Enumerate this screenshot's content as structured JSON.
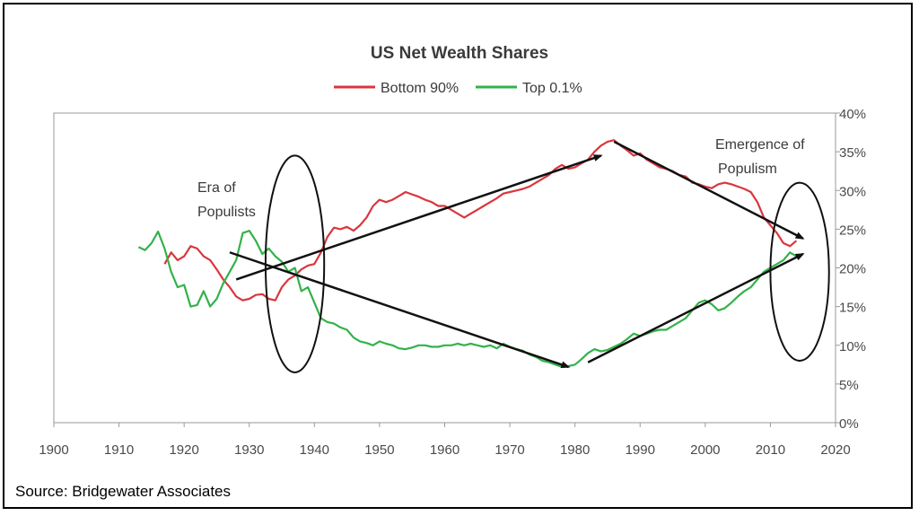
{
  "source_text": "Source:  Bridgewater Associates",
  "chart_data": {
    "type": "line",
    "title": "US Net Wealth Shares",
    "xlabel": "",
    "ylabel": "",
    "xlim": [
      1900,
      2020
    ],
    "ylim": [
      0,
      40
    ],
    "y_axis_side": "right",
    "y_format": "percent",
    "x_ticks": [
      1900,
      1910,
      1920,
      1930,
      1940,
      1950,
      1960,
      1970,
      1980,
      1990,
      2000,
      2010,
      2020
    ],
    "y_ticks": [
      0,
      5,
      10,
      15,
      20,
      25,
      30,
      35,
      40
    ],
    "legend_position": "top-center",
    "grid": false,
    "series": [
      {
        "name": "Bottom 90%",
        "color": "#d9363e",
        "points": [
          [
            1917,
            20.5
          ],
          [
            1918,
            22.0
          ],
          [
            1919,
            21.0
          ],
          [
            1920,
            21.5
          ],
          [
            1921,
            22.8
          ],
          [
            1922,
            22.5
          ],
          [
            1923,
            21.5
          ],
          [
            1924,
            21.0
          ],
          [
            1925,
            19.8
          ],
          [
            1926,
            18.5
          ],
          [
            1927,
            17.5
          ],
          [
            1928,
            16.3
          ],
          [
            1929,
            15.8
          ],
          [
            1930,
            16.0
          ],
          [
            1931,
            16.5
          ],
          [
            1932,
            16.6
          ],
          [
            1933,
            16.0
          ],
          [
            1934,
            15.8
          ],
          [
            1935,
            17.5
          ],
          [
            1936,
            18.5
          ],
          [
            1937,
            19.0
          ],
          [
            1938,
            19.8
          ],
          [
            1939,
            20.3
          ],
          [
            1940,
            20.5
          ],
          [
            1941,
            22.0
          ],
          [
            1942,
            24.0
          ],
          [
            1943,
            25.2
          ],
          [
            1944,
            25.0
          ],
          [
            1945,
            25.3
          ],
          [
            1946,
            24.8
          ],
          [
            1947,
            25.5
          ],
          [
            1948,
            26.5
          ],
          [
            1949,
            28.0
          ],
          [
            1950,
            28.8
          ],
          [
            1951,
            28.5
          ],
          [
            1952,
            28.8
          ],
          [
            1953,
            29.3
          ],
          [
            1954,
            29.8
          ],
          [
            1955,
            29.5
          ],
          [
            1956,
            29.2
          ],
          [
            1957,
            28.8
          ],
          [
            1958,
            28.5
          ],
          [
            1959,
            28.0
          ],
          [
            1960,
            28.0
          ],
          [
            1961,
            27.5
          ],
          [
            1962,
            27.0
          ],
          [
            1963,
            26.5
          ],
          [
            1964,
            27.0
          ],
          [
            1965,
            27.5
          ],
          [
            1966,
            28.0
          ],
          [
            1967,
            28.5
          ],
          [
            1968,
            29.0
          ],
          [
            1969,
            29.6
          ],
          [
            1970,
            29.8
          ],
          [
            1971,
            30.0
          ],
          [
            1972,
            30.2
          ],
          [
            1973,
            30.5
          ],
          [
            1974,
            31.0
          ],
          [
            1975,
            31.5
          ],
          [
            1976,
            32.0
          ],
          [
            1977,
            32.8
          ],
          [
            1978,
            33.3
          ],
          [
            1979,
            32.8
          ],
          [
            1980,
            33.0
          ],
          [
            1981,
            33.5
          ],
          [
            1982,
            34.0
          ],
          [
            1983,
            35.0
          ],
          [
            1984,
            35.8
          ],
          [
            1985,
            36.3
          ],
          [
            1986,
            36.5
          ],
          [
            1987,
            35.8
          ],
          [
            1988,
            35.2
          ],
          [
            1989,
            34.5
          ],
          [
            1990,
            34.8
          ],
          [
            1991,
            34.0
          ],
          [
            1992,
            33.5
          ],
          [
            1993,
            33.0
          ],
          [
            1994,
            32.8
          ],
          [
            1995,
            32.5
          ],
          [
            1996,
            32.0
          ],
          [
            1997,
            31.8
          ],
          [
            1998,
            31.0
          ],
          [
            1999,
            30.8
          ],
          [
            2000,
            30.5
          ],
          [
            2001,
            30.3
          ],
          [
            2002,
            30.8
          ],
          [
            2003,
            31.0
          ],
          [
            2004,
            30.8
          ],
          [
            2005,
            30.5
          ],
          [
            2006,
            30.2
          ],
          [
            2007,
            29.8
          ],
          [
            2008,
            28.5
          ],
          [
            2009,
            26.5
          ],
          [
            2010,
            25.5
          ],
          [
            2011,
            24.5
          ],
          [
            2012,
            23.2
          ],
          [
            2013,
            22.8
          ],
          [
            2014,
            23.5
          ]
        ]
      },
      {
        "name": "Top 0.1%",
        "color": "#33b24a",
        "points": [
          [
            1913,
            22.7
          ],
          [
            1914,
            22.3
          ],
          [
            1915,
            23.2
          ],
          [
            1916,
            24.7
          ],
          [
            1917,
            22.5
          ],
          [
            1918,
            19.5
          ],
          [
            1919,
            17.5
          ],
          [
            1920,
            17.8
          ],
          [
            1921,
            15.0
          ],
          [
            1922,
            15.2
          ],
          [
            1923,
            17.0
          ],
          [
            1924,
            15.0
          ],
          [
            1925,
            16.0
          ],
          [
            1926,
            18.0
          ],
          [
            1927,
            19.5
          ],
          [
            1928,
            21.0
          ],
          [
            1929,
            24.5
          ],
          [
            1930,
            24.8
          ],
          [
            1931,
            23.5
          ],
          [
            1932,
            21.8
          ],
          [
            1933,
            22.5
          ],
          [
            1934,
            21.5
          ],
          [
            1935,
            20.8
          ],
          [
            1936,
            19.5
          ],
          [
            1937,
            20.0
          ],
          [
            1938,
            17.0
          ],
          [
            1939,
            17.5
          ],
          [
            1940,
            15.5
          ],
          [
            1941,
            13.5
          ],
          [
            1942,
            13.0
          ],
          [
            1943,
            12.8
          ],
          [
            1944,
            12.3
          ],
          [
            1945,
            12.0
          ],
          [
            1946,
            11.0
          ],
          [
            1947,
            10.5
          ],
          [
            1948,
            10.3
          ],
          [
            1949,
            10.0
          ],
          [
            1950,
            10.5
          ],
          [
            1951,
            10.2
          ],
          [
            1952,
            10.0
          ],
          [
            1953,
            9.6
          ],
          [
            1954,
            9.5
          ],
          [
            1955,
            9.7
          ],
          [
            1956,
            10.0
          ],
          [
            1957,
            10.0
          ],
          [
            1958,
            9.8
          ],
          [
            1959,
            9.8
          ],
          [
            1960,
            10.0
          ],
          [
            1961,
            10.0
          ],
          [
            1962,
            10.2
          ],
          [
            1963,
            10.0
          ],
          [
            1964,
            10.2
          ],
          [
            1965,
            10.0
          ],
          [
            1966,
            9.8
          ],
          [
            1967,
            10.0
          ],
          [
            1968,
            9.6
          ],
          [
            1969,
            10.2
          ],
          [
            1970,
            9.8
          ],
          [
            1971,
            9.5
          ],
          [
            1972,
            9.3
          ],
          [
            1973,
            8.8
          ],
          [
            1974,
            8.5
          ],
          [
            1975,
            8.0
          ],
          [
            1976,
            7.8
          ],
          [
            1977,
            7.5
          ],
          [
            1978,
            7.2
          ],
          [
            1979,
            7.3
          ],
          [
            1980,
            7.5
          ],
          [
            1981,
            8.2
          ],
          [
            1982,
            9.0
          ],
          [
            1983,
            9.5
          ],
          [
            1984,
            9.2
          ],
          [
            1985,
            9.4
          ],
          [
            1986,
            9.8
          ],
          [
            1987,
            10.2
          ],
          [
            1988,
            10.8
          ],
          [
            1989,
            11.5
          ],
          [
            1990,
            11.2
          ],
          [
            1991,
            11.5
          ],
          [
            1992,
            11.8
          ],
          [
            1993,
            12.0
          ],
          [
            1994,
            12.0
          ],
          [
            1995,
            12.5
          ],
          [
            1996,
            13.0
          ],
          [
            1997,
            13.5
          ],
          [
            1998,
            14.5
          ],
          [
            1999,
            15.5
          ],
          [
            2000,
            15.8
          ],
          [
            2001,
            15.3
          ],
          [
            2002,
            14.5
          ],
          [
            2003,
            14.8
          ],
          [
            2004,
            15.5
          ],
          [
            2005,
            16.3
          ],
          [
            2006,
            17.0
          ],
          [
            2007,
            17.5
          ],
          [
            2008,
            18.5
          ],
          [
            2009,
            19.5
          ],
          [
            2010,
            20.0
          ],
          [
            2011,
            20.5
          ],
          [
            2012,
            21.0
          ],
          [
            2013,
            22.0
          ],
          [
            2014,
            21.5
          ]
        ]
      }
    ],
    "annotations": [
      {
        "label_lines": [
          "Era of",
          "Populists"
        ]
      },
      {
        "label_lines": [
          "Emergence of",
          "Populism"
        ]
      }
    ],
    "trend_arrows": [
      {
        "from": [
          1928,
          18.5
        ],
        "to": [
          1984,
          34.5
        ]
      },
      {
        "from": [
          1927,
          22.0
        ],
        "to": [
          1979,
          7.2
        ]
      },
      {
        "from": [
          1986,
          36.3
        ],
        "to": [
          2015,
          23.8
        ]
      },
      {
        "from": [
          1982,
          7.8
        ],
        "to": [
          2015,
          21.8
        ]
      }
    ],
    "ellipses": [
      {
        "center": [
          1937,
          20.5
        ],
        "radius_x_years": 4.5,
        "radius_y_pct": 14.0
      },
      {
        "center": [
          2014.5,
          19.5
        ],
        "radius_x_years": 4.5,
        "radius_y_pct": 11.5
      }
    ]
  }
}
